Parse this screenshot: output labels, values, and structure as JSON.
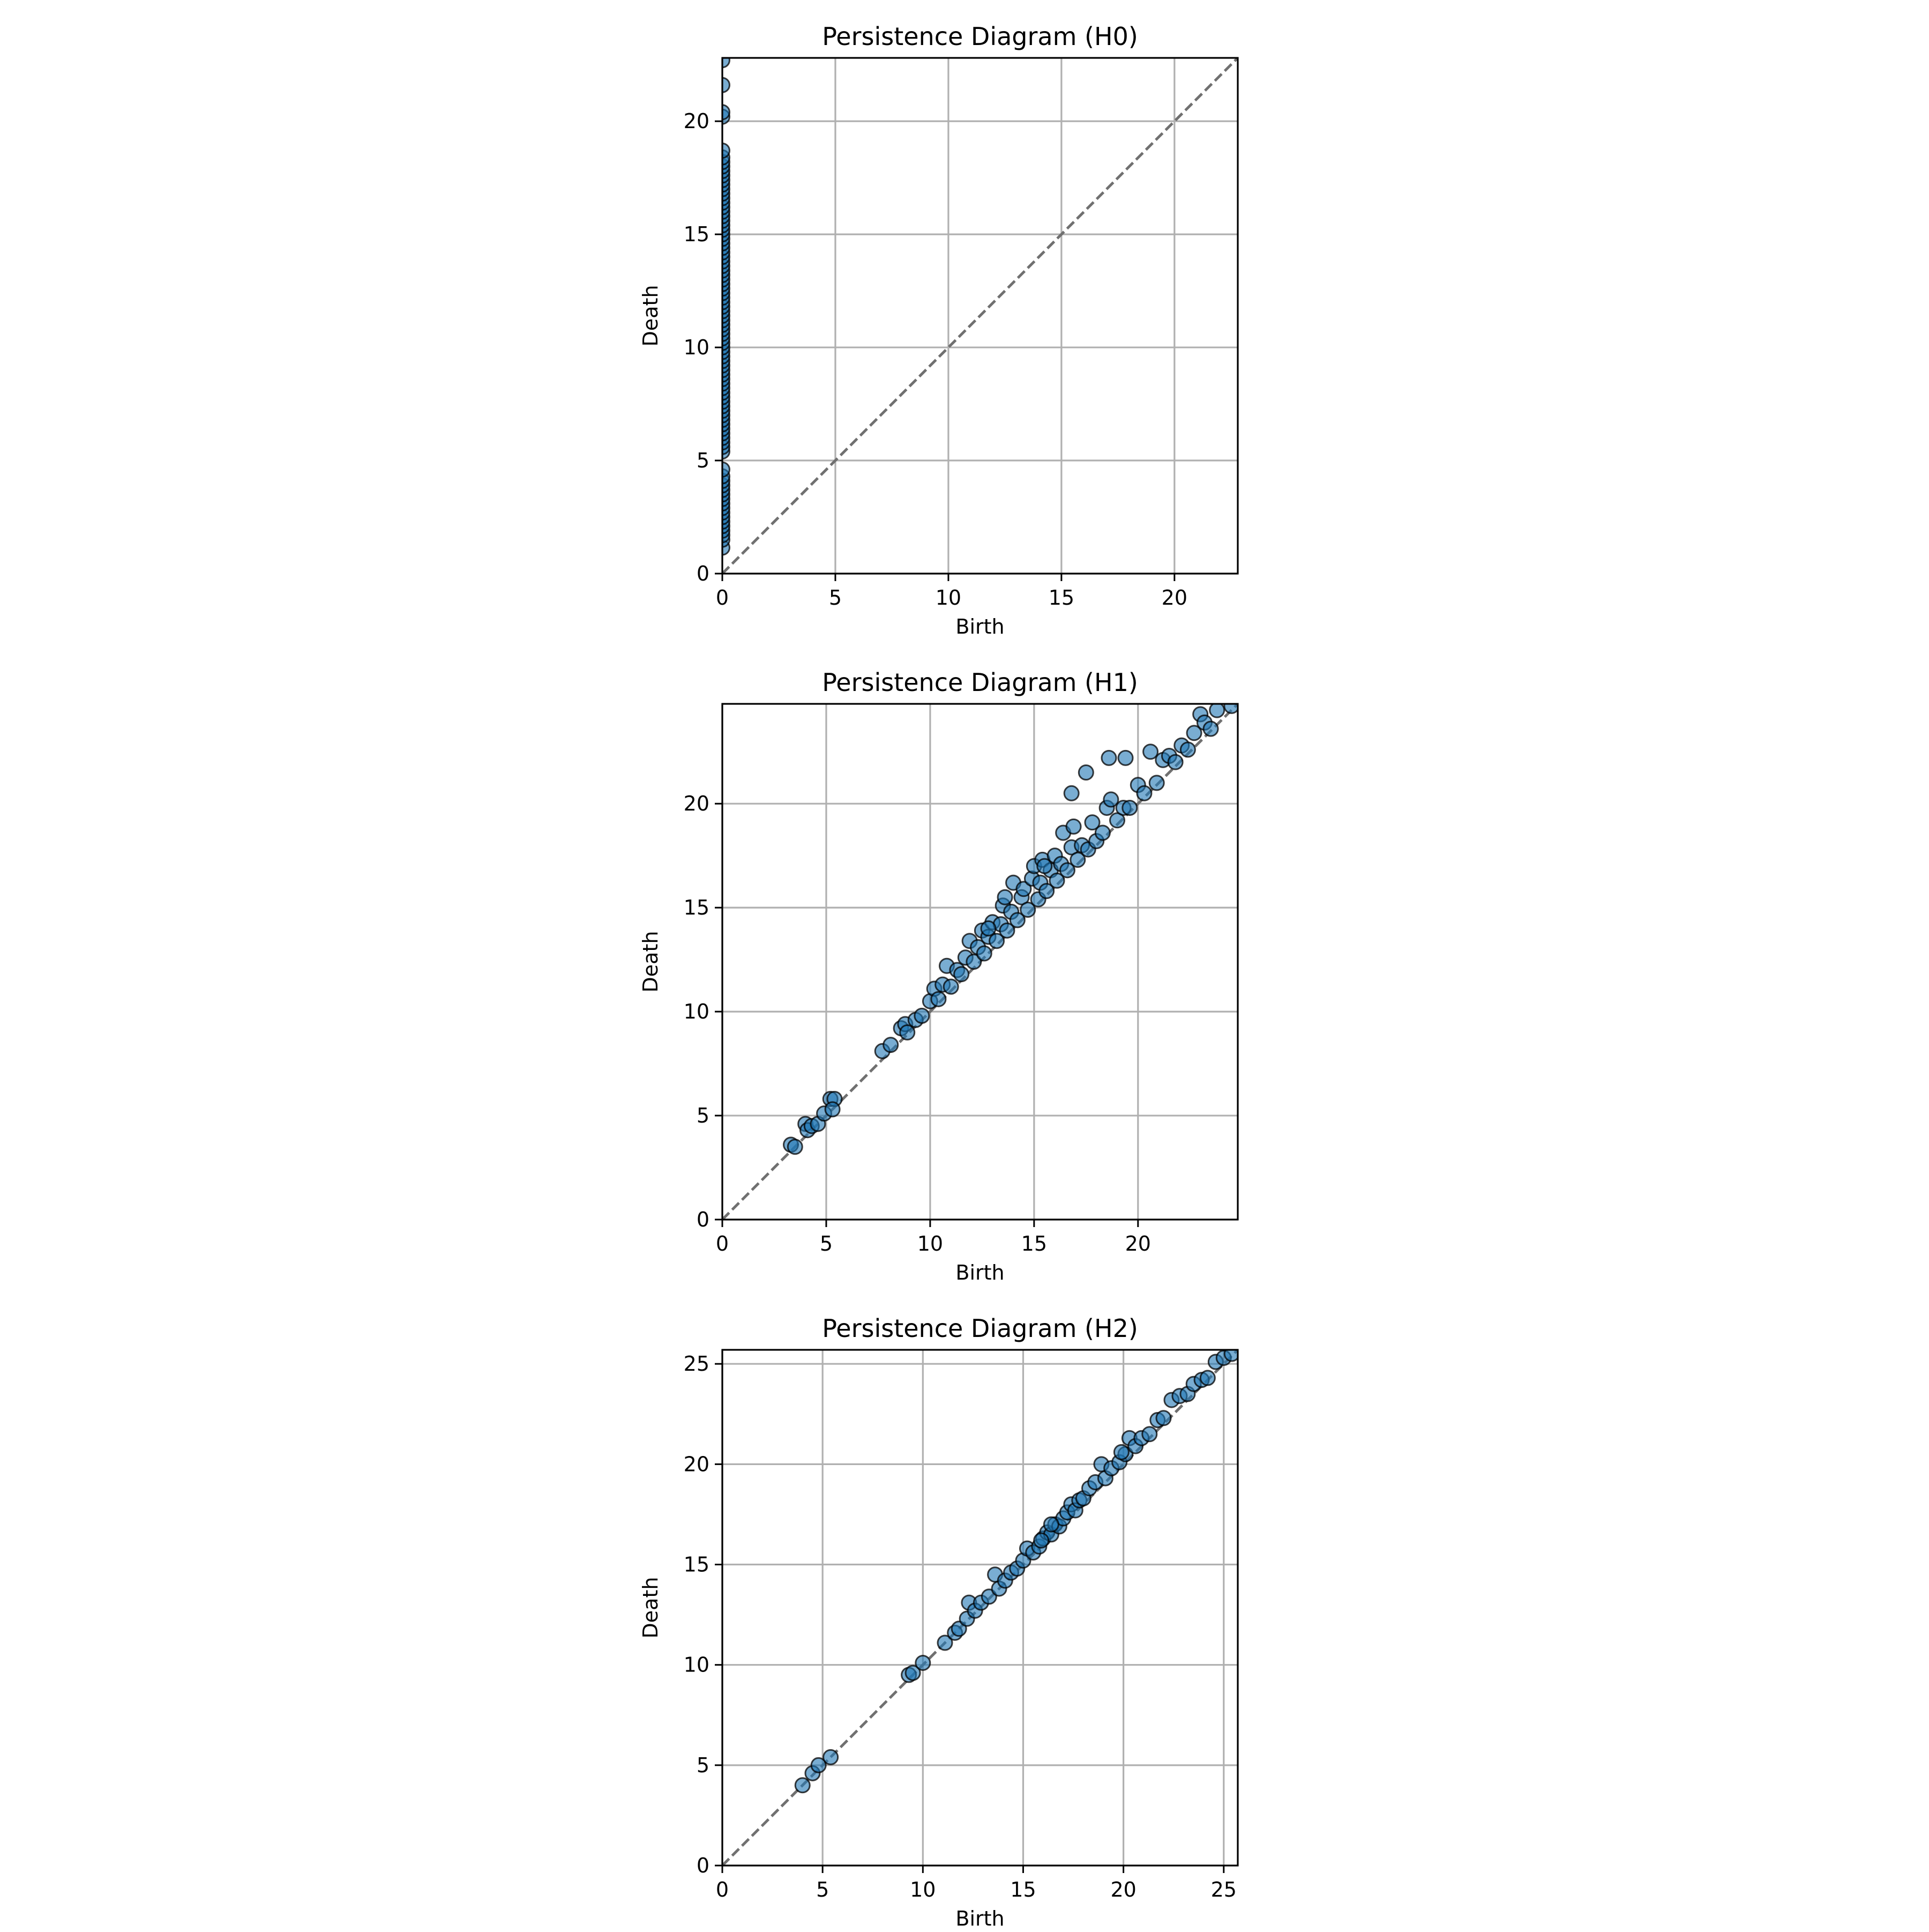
{
  "chart_data": [
    {
      "type": "scatter",
      "title": "Persistence Diagram (H0)",
      "xlabel": "Birth",
      "ylabel": "Death",
      "xlim": [
        0,
        22.8
      ],
      "ylim": [
        0,
        22.8
      ],
      "xticks": [
        0,
        5,
        10,
        15,
        20
      ],
      "yticks": [
        0,
        5,
        10,
        15,
        20
      ],
      "xtick_labels": [
        "0",
        "5",
        "10",
        "15",
        "20"
      ],
      "ytick_labels": [
        "0",
        "5",
        "10",
        "15",
        "20"
      ],
      "grid": true,
      "diagonal": true,
      "marker_color": "#1f77b4",
      "points": [
        [
          0,
          1.15
        ],
        [
          0,
          1.5
        ],
        [
          0,
          1.7
        ],
        [
          0,
          1.9
        ],
        [
          0,
          2.1
        ],
        [
          0,
          2.3
        ],
        [
          0,
          2.5
        ],
        [
          0,
          2.7
        ],
        [
          0,
          2.9
        ],
        [
          0,
          3.1
        ],
        [
          0,
          3.3
        ],
        [
          0,
          3.5
        ],
        [
          0,
          3.7
        ],
        [
          0,
          3.9
        ],
        [
          0,
          4.1
        ],
        [
          0,
          4.3
        ],
        [
          0,
          4.6
        ],
        [
          0,
          5.4
        ],
        [
          0,
          5.6
        ],
        [
          0,
          5.8
        ],
        [
          0,
          6.0
        ],
        [
          0,
          6.2
        ],
        [
          0,
          6.4
        ],
        [
          0,
          6.6
        ],
        [
          0,
          6.8
        ],
        [
          0,
          7.0
        ],
        [
          0,
          7.2
        ],
        [
          0,
          7.4
        ],
        [
          0,
          7.6
        ],
        [
          0,
          7.8
        ],
        [
          0,
          8.0
        ],
        [
          0,
          8.2
        ],
        [
          0,
          8.4
        ],
        [
          0,
          8.6
        ],
        [
          0,
          8.8
        ],
        [
          0,
          9.0
        ],
        [
          0,
          9.2
        ],
        [
          0,
          9.4
        ],
        [
          0,
          9.6
        ],
        [
          0,
          9.8
        ],
        [
          0,
          10.0
        ],
        [
          0,
          10.2
        ],
        [
          0,
          10.4
        ],
        [
          0,
          10.6
        ],
        [
          0,
          10.8
        ],
        [
          0,
          11.0
        ],
        [
          0,
          11.2
        ],
        [
          0,
          11.4
        ],
        [
          0,
          11.6
        ],
        [
          0,
          11.8
        ],
        [
          0,
          12.0
        ],
        [
          0,
          12.2
        ],
        [
          0,
          12.4
        ],
        [
          0,
          12.6
        ],
        [
          0,
          12.8
        ],
        [
          0,
          13.0
        ],
        [
          0,
          13.2
        ],
        [
          0,
          13.4
        ],
        [
          0,
          13.6
        ],
        [
          0,
          13.8
        ],
        [
          0,
          14.0
        ],
        [
          0,
          14.2
        ],
        [
          0,
          14.4
        ],
        [
          0,
          14.6
        ],
        [
          0,
          14.8
        ],
        [
          0,
          15.0
        ],
        [
          0,
          15.2
        ],
        [
          0,
          15.4
        ],
        [
          0,
          15.6
        ],
        [
          0,
          15.8
        ],
        [
          0,
          16.0
        ],
        [
          0,
          16.2
        ],
        [
          0,
          16.4
        ],
        [
          0,
          16.6
        ],
        [
          0,
          16.8
        ],
        [
          0,
          17.0
        ],
        [
          0,
          17.2
        ],
        [
          0,
          17.4
        ],
        [
          0,
          17.6
        ],
        [
          0,
          17.8
        ],
        [
          0,
          18.0
        ],
        [
          0,
          18.2
        ],
        [
          0,
          18.4
        ],
        [
          0,
          18.7
        ],
        [
          0,
          20.2
        ],
        [
          0,
          20.4
        ],
        [
          0,
          21.6
        ],
        [
          0,
          22.7
        ]
      ]
    },
    {
      "type": "scatter",
      "title": "Persistence Diagram (H1)",
      "xlabel": "Birth",
      "ylabel": "Death",
      "xlim": [
        0,
        24.8
      ],
      "ylim": [
        0,
        24.8
      ],
      "xticks": [
        0,
        5,
        10,
        15,
        20
      ],
      "yticks": [
        0,
        5,
        10,
        15,
        20
      ],
      "xtick_labels": [
        "0",
        "5",
        "10",
        "15",
        "20"
      ],
      "ytick_labels": [
        "0",
        "5",
        "10",
        "15",
        "20"
      ],
      "grid": true,
      "diagonal": true,
      "marker_color": "#1f77b4",
      "points": [
        [
          3.3,
          3.6
        ],
        [
          3.5,
          3.5
        ],
        [
          4.0,
          4.6
        ],
        [
          4.1,
          4.3
        ],
        [
          4.3,
          4.5
        ],
        [
          4.6,
          4.6
        ],
        [
          4.9,
          5.1
        ],
        [
          5.2,
          5.8
        ],
        [
          5.4,
          5.8
        ],
        [
          5.3,
          5.3
        ],
        [
          7.7,
          8.1
        ],
        [
          8.1,
          8.4
        ],
        [
          8.6,
          9.2
        ],
        [
          8.8,
          9.4
        ],
        [
          8.9,
          9.0
        ],
        [
          9.3,
          9.6
        ],
        [
          9.6,
          9.8
        ],
        [
          10.0,
          10.5
        ],
        [
          10.2,
          11.1
        ],
        [
          10.4,
          10.6
        ],
        [
          10.6,
          11.3
        ],
        [
          10.8,
          12.2
        ],
        [
          11.0,
          11.2
        ],
        [
          11.3,
          12.0
        ],
        [
          11.5,
          11.8
        ],
        [
          11.7,
          12.6
        ],
        [
          11.9,
          13.4
        ],
        [
          12.1,
          12.4
        ],
        [
          12.3,
          13.1
        ],
        [
          12.5,
          13.9
        ],
        [
          12.6,
          12.8
        ],
        [
          12.8,
          13.6
        ],
        [
          13.0,
          14.3
        ],
        [
          13.2,
          13.4
        ],
        [
          13.4,
          14.2
        ],
        [
          13.5,
          15.1
        ],
        [
          13.7,
          13.9
        ],
        [
          13.9,
          14.8
        ],
        [
          14.0,
          16.2
        ],
        [
          14.2,
          14.4
        ],
        [
          14.4,
          15.5
        ],
        [
          14.5,
          15.9
        ],
        [
          14.7,
          14.9
        ],
        [
          14.9,
          16.4
        ],
        [
          15.0,
          17.0
        ],
        [
          15.2,
          15.4
        ],
        [
          15.3,
          16.2
        ],
        [
          15.4,
          17.3
        ],
        [
          15.6,
          15.8
        ],
        [
          15.8,
          16.8
        ],
        [
          16.0,
          17.5
        ],
        [
          16.1,
          16.3
        ],
        [
          16.3,
          17.1
        ],
        [
          16.4,
          18.6
        ],
        [
          16.6,
          16.8
        ],
        [
          16.8,
          17.9
        ],
        [
          16.9,
          18.9
        ],
        [
          17.1,
          17.3
        ],
        [
          17.3,
          18.0
        ],
        [
          17.6,
          17.8
        ],
        [
          17.8,
          19.1
        ],
        [
          18.0,
          18.2
        ],
        [
          18.3,
          18.6
        ],
        [
          18.5,
          19.8
        ],
        [
          18.7,
          20.2
        ],
        [
          19.0,
          19.2
        ],
        [
          19.3,
          19.8
        ],
        [
          19.6,
          19.8
        ],
        [
          20.0,
          20.9
        ],
        [
          20.3,
          20.5
        ],
        [
          20.6,
          22.5
        ],
        [
          20.9,
          21.0
        ],
        [
          21.2,
          22.1
        ],
        [
          21.5,
          22.3
        ],
        [
          21.8,
          22.0
        ],
        [
          22.1,
          22.8
        ],
        [
          22.4,
          22.6
        ],
        [
          22.7,
          23.4
        ],
        [
          23.0,
          24.3
        ],
        [
          23.2,
          23.9
        ],
        [
          23.5,
          23.6
        ],
        [
          23.8,
          24.5
        ],
        [
          24.5,
          24.7
        ],
        [
          16.8,
          20.5
        ],
        [
          17.5,
          21.5
        ],
        [
          18.6,
          22.2
        ],
        [
          19.4,
          22.2
        ],
        [
          12.8,
          14.0
        ],
        [
          13.6,
          15.5
        ],
        [
          15.5,
          17.0
        ]
      ]
    },
    {
      "type": "scatter",
      "title": "Persistence Diagram (H2)",
      "xlabel": "Birth",
      "ylabel": "Death",
      "xlim": [
        0,
        25.7
      ],
      "ylim": [
        0,
        25.7
      ],
      "xticks": [
        0,
        5,
        10,
        15,
        20,
        25
      ],
      "yticks": [
        0,
        5,
        10,
        15,
        20,
        25
      ],
      "xtick_labels": [
        "0",
        "5",
        "10",
        "15",
        "20",
        "25"
      ],
      "ytick_labels": [
        "0",
        "5",
        "10",
        "15",
        "20",
        "25"
      ],
      "grid": true,
      "diagonal": true,
      "marker_color": "#1f77b4",
      "points": [
        [
          4.0,
          4.0
        ],
        [
          4.5,
          4.6
        ],
        [
          4.8,
          5.0
        ],
        [
          5.4,
          5.4
        ],
        [
          9.3,
          9.5
        ],
        [
          9.5,
          9.6
        ],
        [
          10.0,
          10.1
        ],
        [
          11.1,
          11.1
        ],
        [
          11.6,
          11.6
        ],
        [
          11.8,
          11.8
        ],
        [
          12.2,
          12.3
        ],
        [
          12.3,
          13.1
        ],
        [
          12.6,
          12.7
        ],
        [
          12.9,
          13.1
        ],
        [
          13.3,
          13.4
        ],
        [
          13.6,
          14.5
        ],
        [
          13.8,
          13.8
        ],
        [
          14.1,
          14.2
        ],
        [
          14.4,
          14.6
        ],
        [
          14.7,
          14.8
        ],
        [
          15.0,
          15.2
        ],
        [
          15.2,
          15.8
        ],
        [
          15.5,
          15.6
        ],
        [
          15.8,
          15.9
        ],
        [
          16.0,
          16.3
        ],
        [
          16.2,
          16.6
        ],
        [
          16.4,
          16.5
        ],
        [
          16.6,
          17.0
        ],
        [
          16.8,
          16.9
        ],
        [
          17.0,
          17.3
        ],
        [
          17.2,
          17.6
        ],
        [
          17.4,
          18.0
        ],
        [
          17.6,
          17.7
        ],
        [
          17.8,
          18.2
        ],
        [
          18.0,
          18.3
        ],
        [
          18.3,
          18.8
        ],
        [
          18.6,
          19.1
        ],
        [
          18.9,
          20.0
        ],
        [
          19.1,
          19.3
        ],
        [
          19.4,
          19.8
        ],
        [
          19.8,
          20.1
        ],
        [
          20.1,
          20.5
        ],
        [
          20.3,
          21.3
        ],
        [
          20.6,
          20.9
        ],
        [
          20.9,
          21.3
        ],
        [
          21.3,
          21.5
        ],
        [
          21.7,
          22.2
        ],
        [
          22.0,
          22.3
        ],
        [
          22.4,
          23.2
        ],
        [
          22.8,
          23.4
        ],
        [
          23.2,
          23.5
        ],
        [
          23.5,
          24.0
        ],
        [
          23.9,
          24.2
        ],
        [
          24.2,
          24.3
        ],
        [
          24.6,
          25.1
        ],
        [
          25.0,
          25.3
        ],
        [
          25.4,
          25.5
        ],
        [
          16.4,
          17.0
        ],
        [
          19.9,
          20.6
        ],
        [
          15.9,
          16.2
        ]
      ]
    }
  ]
}
